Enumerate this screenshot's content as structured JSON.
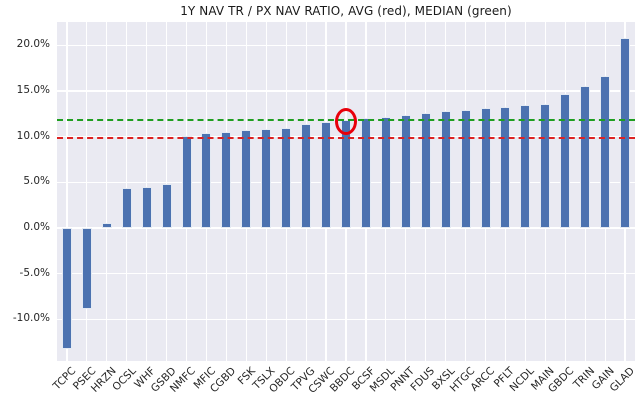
{
  "figure": {
    "title": "1Y NAV TR / PX NAV RATIO, AVG (red), MEDIAN (green)"
  },
  "chart_data": {
    "type": "bar",
    "title": "1Y NAV TR / PX NAV RATIO, AVG (red), MEDIAN (green)",
    "xlabel": "",
    "ylabel": "",
    "categories": [
      "TCPC",
      "PSEC",
      "HRZN",
      "OCSL",
      "WHF",
      "GSBD",
      "NMFC",
      "MFIC",
      "CGBD",
      "FSK",
      "TSLX",
      "OBDC",
      "TPVG",
      "CSWC",
      "BBDC",
      "BCSF",
      "MSDL",
      "PNNT",
      "FDUS",
      "BXSL",
      "HTGC",
      "ARCC",
      "PFLT",
      "NCDL",
      "MAIN",
      "GBDC",
      "TRIN",
      "GAIN",
      "GLAD"
    ],
    "values": [
      -13.2,
      -8.9,
      0.5,
      4.4,
      4.5,
      4.8,
      10.1,
      10.4,
      10.5,
      10.7,
      10.8,
      11.0,
      11.4,
      11.6,
      11.8,
      12.0,
      12.2,
      12.4,
      12.6,
      12.8,
      12.9,
      13.1,
      13.2,
      13.5,
      13.6,
      14.7,
      15.5,
      16.6,
      20.8
    ],
    "value_unit": "%",
    "avg_line": {
      "label": "AVG",
      "value": 9.9,
      "color": "#dd2222"
    },
    "median_line": {
      "label": "MEDIAN",
      "value": 11.8,
      "color": "#1f9e1f"
    },
    "highlight": {
      "category": "BBDC",
      "marker": "red-circle-annotation",
      "color": "#e8000b"
    },
    "ylim": [
      -14.56,
      22.56
    ],
    "yticks": [
      {
        "value": -10,
        "label": "-10.0%"
      },
      {
        "value": -5,
        "label": "-5.0%"
      },
      {
        "value": 0,
        "label": "0.0%"
      },
      {
        "value": 5,
        "label": "5.0%"
      },
      {
        "value": 10,
        "label": "10.0%"
      },
      {
        "value": 15,
        "label": "15.0%"
      },
      {
        "value": 20,
        "label": "20.0%"
      }
    ],
    "grid": true,
    "legend_position": "none",
    "bar_color": "#4c72b0",
    "plot_bg": "#eaeaf2",
    "grid_color": "#ffffff",
    "text_color": "#262626"
  }
}
